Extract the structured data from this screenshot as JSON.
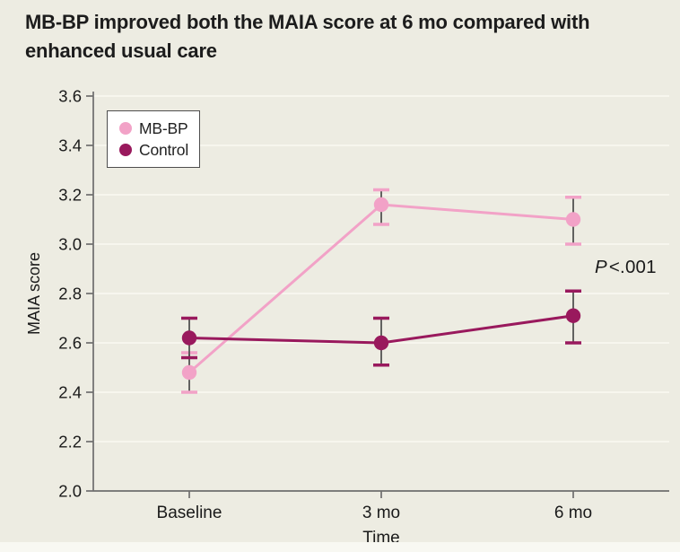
{
  "figure": {
    "background_color": "#EDECE2",
    "title_line1": "MB-BP improved both the MAIA score at 6 mo compared with",
    "title_line2": "enhanced usual care",
    "annotation": {
      "p_label": "P",
      "p_value": "<.001"
    }
  },
  "legend": {
    "items": [
      {
        "label": "MB-BP",
        "color": "#F2A2C7"
      },
      {
        "label": "Control",
        "color": "#99195D"
      }
    ]
  },
  "chart_data": {
    "type": "line",
    "title": "MB-BP improved both the MAIA score at 6 mo compared with enhanced usual care",
    "categories": [
      "Baseline",
      "3 mo",
      "6 mo"
    ],
    "series": [
      {
        "name": "MB-BP",
        "color": "#F2A2C7",
        "values": [
          2.48,
          3.16,
          3.1
        ],
        "ci_low": [
          2.4,
          3.08,
          3.0
        ],
        "ci_high": [
          2.56,
          3.22,
          3.19
        ]
      },
      {
        "name": "Control",
        "color": "#99195D",
        "values": [
          2.62,
          2.6,
          2.71
        ],
        "ci_low": [
          2.54,
          2.51,
          2.6
        ],
        "ci_high": [
          2.7,
          2.7,
          2.81
        ]
      }
    ],
    "xlabel": "Time",
    "ylabel": "MAIA score",
    "ylim": [
      2.0,
      3.6
    ],
    "ytick_step": 0.2,
    "ytick_format_decimals": 1,
    "annotation": "P < .001",
    "grid": true,
    "legend_position": "top-left",
    "grid_color": "#F7F6EE",
    "axis_color": "#6E6E6E",
    "tick_text_color": "#1A1A1A",
    "error_bar_color": "#4A4A4A"
  }
}
